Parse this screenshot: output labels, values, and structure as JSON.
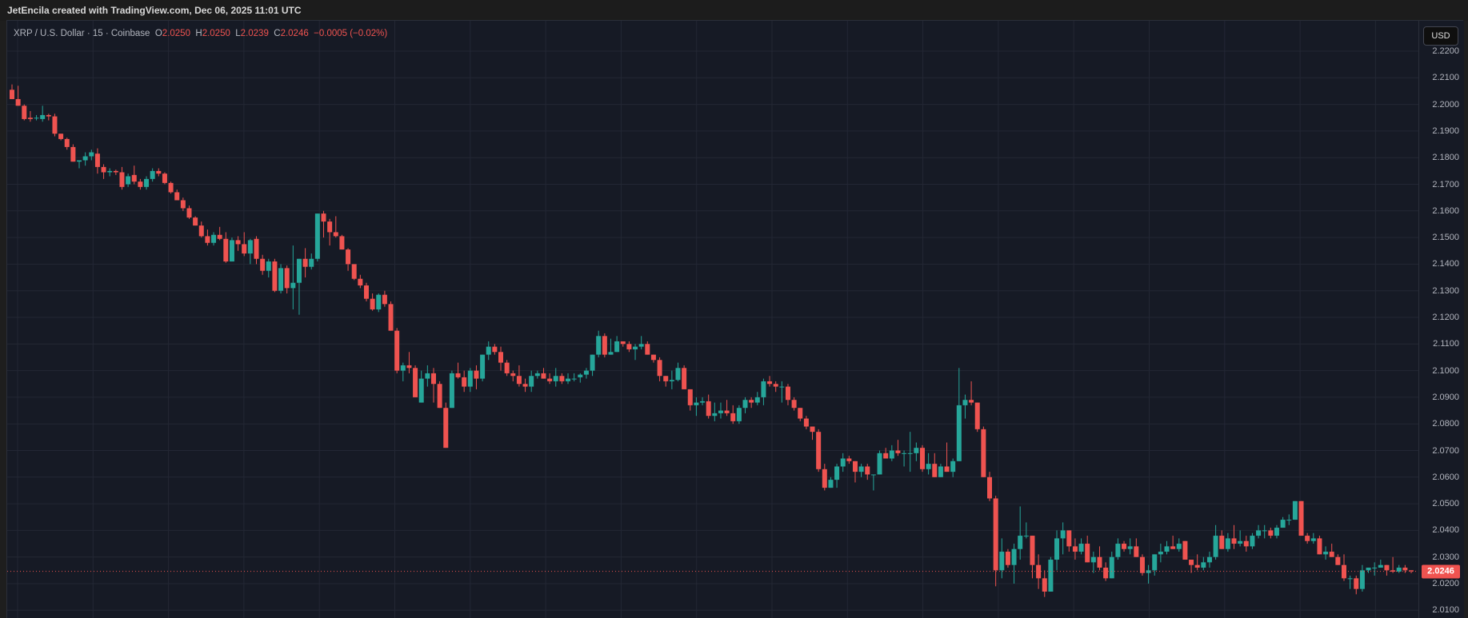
{
  "header": {
    "attribution": "JetEncila created with TradingView.com, Dec 06, 2025 11:01 UTC"
  },
  "legend": {
    "symbol": "XRP / U.S. Dollar · 15 · Coinbase",
    "open_label": "O",
    "open": "2.0250",
    "high_label": "H",
    "high": "2.0250",
    "low_label": "L",
    "low": "2.0239",
    "close_label": "C",
    "close": "2.0246",
    "change": "−0.0005 (−0.02%)"
  },
  "axis": {
    "currency_button": "USD",
    "last_price_tag": "2.0246"
  },
  "colors": {
    "up": "#26a69a",
    "down": "#ef5350",
    "background": "#161a25",
    "grid": "#232734"
  },
  "chart_data": {
    "type": "candlestick",
    "title": "XRP / U.S. Dollar · 15 · Coinbase",
    "xlabel": "",
    "ylabel": "USD",
    "ylim": [
      2.0075,
      2.2265
    ],
    "y_ticks": [
      "2.2200",
      "2.2100",
      "2.2000",
      "2.1900",
      "2.1800",
      "2.1700",
      "2.1600",
      "2.1500",
      "2.1400",
      "2.1300",
      "2.1200",
      "2.1100",
      "2.1000",
      "2.0900",
      "2.0800",
      "2.0700",
      "2.0600",
      "2.0500",
      "2.0400",
      "2.0300",
      "2.0200",
      "2.0100"
    ],
    "grid": true,
    "last_price": 2.0246,
    "ohlc_note": "approximate values read from pixels; [open, high, low, close]",
    "candles": [
      [
        2.2055,
        2.2075,
        2.202,
        2.202
      ],
      [
        2.202,
        2.207,
        2.1995,
        2.1995
      ],
      [
        2.1995,
        2.2,
        2.194,
        2.1945
      ],
      [
        2.195,
        2.1975,
        2.1935,
        2.1945
      ],
      [
        2.195,
        2.196,
        2.194,
        2.195
      ],
      [
        2.1945,
        2.1995,
        2.1935,
        2.196
      ],
      [
        2.196,
        2.1965,
        2.194,
        2.1955
      ],
      [
        2.1955,
        2.1965,
        2.188,
        2.189
      ],
      [
        2.189,
        2.1885,
        2.1865,
        2.187
      ],
      [
        2.187,
        2.1875,
        2.183,
        2.184
      ],
      [
        2.184,
        2.185,
        2.1785,
        2.1785
      ],
      [
        2.1785,
        2.179,
        2.176,
        2.179
      ],
      [
        2.179,
        2.182,
        2.177,
        2.1805
      ],
      [
        2.1805,
        2.183,
        2.179,
        2.182
      ],
      [
        2.1815,
        2.1835,
        2.174,
        2.1765
      ],
      [
        2.1765,
        2.1775,
        2.172,
        2.1745
      ],
      [
        2.1745,
        2.176,
        2.173,
        2.175
      ],
      [
        2.175,
        2.1755,
        2.1735,
        2.1745
      ],
      [
        2.1745,
        2.1765,
        2.168,
        2.169
      ],
      [
        2.17,
        2.174,
        2.169,
        2.173
      ],
      [
        2.1735,
        2.177,
        2.17,
        2.171
      ],
      [
        2.171,
        2.172,
        2.168,
        2.169
      ],
      [
        2.169,
        2.173,
        2.168,
        2.172
      ],
      [
        2.172,
        2.176,
        2.171,
        2.175
      ],
      [
        2.175,
        2.176,
        2.173,
        2.174
      ],
      [
        2.174,
        2.1745,
        2.17,
        2.1705
      ],
      [
        2.1705,
        2.171,
        2.1665,
        2.167
      ],
      [
        2.167,
        2.168,
        2.164,
        2.164
      ],
      [
        2.164,
        2.165,
        2.16,
        2.161
      ],
      [
        2.161,
        2.162,
        2.157,
        2.1575
      ],
      [
        2.1575,
        2.158,
        2.1545,
        2.1545
      ],
      [
        2.1545,
        2.156,
        2.15,
        2.1505
      ],
      [
        2.1505,
        2.153,
        2.147,
        2.148
      ],
      [
        2.148,
        2.152,
        2.147,
        2.151
      ],
      [
        2.151,
        2.154,
        2.149,
        2.1495
      ],
      [
        2.1495,
        2.152,
        2.1405,
        2.141
      ],
      [
        2.141,
        2.15,
        2.141,
        2.149
      ],
      [
        2.149,
        2.1505,
        2.145,
        2.1475
      ],
      [
        2.1475,
        2.152,
        2.143,
        2.144
      ],
      [
        2.144,
        2.1495,
        2.14,
        2.149
      ],
      [
        2.1495,
        2.1505,
        2.14,
        2.142
      ],
      [
        2.142,
        2.1435,
        2.136,
        2.1375
      ],
      [
        2.1375,
        2.142,
        2.135,
        2.141
      ],
      [
        2.141,
        2.142,
        2.1295,
        2.13
      ],
      [
        2.13,
        2.14,
        2.129,
        2.1385
      ],
      [
        2.1385,
        2.1395,
        2.129,
        2.131
      ],
      [
        2.131,
        2.147,
        2.123,
        2.133
      ],
      [
        2.133,
        2.141,
        2.121,
        2.142
      ],
      [
        2.142,
        2.146,
        2.135,
        2.139
      ],
      [
        2.139,
        2.144,
        2.138,
        2.142
      ],
      [
        2.142,
        2.158,
        2.141,
        2.159
      ],
      [
        2.159,
        2.16,
        2.15,
        2.156
      ],
      [
        2.156,
        2.157,
        2.147,
        2.152
      ],
      [
        2.152,
        2.158,
        2.15,
        2.1505
      ],
      [
        2.1505,
        2.151,
        2.146,
        2.1455
      ],
      [
        2.1455,
        2.146,
        2.1375,
        2.14
      ],
      [
        2.14,
        2.14,
        2.134,
        2.1345
      ],
      [
        2.1345,
        2.136,
        2.131,
        2.132
      ],
      [
        2.132,
        2.133,
        2.126,
        2.127
      ],
      [
        2.127,
        2.129,
        2.1225,
        2.123
      ],
      [
        2.123,
        2.129,
        2.122,
        2.1285
      ],
      [
        2.1285,
        2.13,
        2.124,
        2.125
      ],
      [
        2.125,
        2.126,
        2.115,
        2.115
      ],
      [
        2.115,
        2.116,
        2.099,
        2.1
      ],
      [
        2.1,
        2.103,
        2.096,
        2.102
      ],
      [
        2.102,
        2.107,
        2.099,
        2.101
      ],
      [
        2.101,
        2.102,
        2.09,
        2.09
      ],
      [
        2.088,
        2.1,
        2.088,
        2.097
      ],
      [
        2.097,
        2.102,
        2.094,
        2.099
      ],
      [
        2.099,
        2.101,
        2.088,
        2.095
      ],
      [
        2.095,
        2.096,
        2.086,
        2.086
      ],
      [
        2.086,
        2.088,
        2.071,
        2.071
      ],
      [
        2.086,
        2.1,
        2.088,
        2.099
      ],
      [
        2.099,
        2.103,
        2.097,
        2.0975
      ],
      [
        2.0975,
        2.1,
        2.092,
        2.094
      ],
      [
        2.094,
        2.101,
        2.092,
        2.1
      ],
      [
        2.1,
        2.102,
        2.093,
        2.097
      ],
      [
        2.097,
        2.105,
        2.096,
        2.106
      ],
      [
        2.106,
        2.111,
        2.104,
        2.109
      ],
      [
        2.109,
        2.11,
        2.106,
        2.107
      ],
      [
        2.107,
        2.109,
        2.1,
        2.103
      ],
      [
        2.103,
        2.104,
        2.098,
        2.099
      ],
      [
        2.099,
        2.1,
        2.096,
        2.098
      ],
      [
        2.098,
        2.102,
        2.094,
        2.095
      ],
      [
        2.095,
        2.097,
        2.092,
        2.094
      ],
      [
        2.094,
        2.1,
        2.092,
        2.098
      ],
      [
        2.098,
        2.1,
        2.097,
        2.099
      ],
      [
        2.099,
        2.101,
        2.098,
        2.097
      ],
      [
        2.097,
        2.099,
        2.095,
        2.096
      ],
      [
        2.096,
        2.101,
        2.094,
        2.098
      ],
      [
        2.098,
        2.099,
        2.095,
        2.096
      ],
      [
        2.096,
        2.099,
        2.095,
        2.097
      ],
      [
        2.097,
        2.099,
        2.096,
        2.097
      ],
      [
        2.0975,
        2.099,
        2.0955,
        2.0985
      ],
      [
        2.0985,
        2.101,
        2.097,
        2.1
      ],
      [
        2.1,
        2.1045,
        2.098,
        2.106
      ],
      [
        2.106,
        2.115,
        2.105,
        2.113
      ],
      [
        2.113,
        2.114,
        2.105,
        2.106
      ],
      [
        2.106,
        2.112,
        2.106,
        2.107
      ],
      [
        2.107,
        2.113,
        2.107,
        2.111
      ],
      [
        2.111,
        2.111,
        2.109,
        2.11
      ],
      [
        2.11,
        2.111,
        2.107,
        2.108
      ],
      [
        2.108,
        2.11,
        2.104,
        2.109
      ],
      [
        2.109,
        2.113,
        2.108,
        2.11
      ],
      [
        2.11,
        2.111,
        2.106,
        2.106
      ],
      [
        2.106,
        2.105,
        2.103,
        2.104
      ],
      [
        2.104,
        2.105,
        2.096,
        2.098
      ],
      [
        2.098,
        2.098,
        2.094,
        2.096
      ],
      [
        2.096,
        2.1,
        2.093,
        2.0965
      ],
      [
        2.0965,
        2.103,
        2.096,
        2.101
      ],
      [
        2.101,
        2.102,
        2.093,
        2.093
      ],
      [
        2.093,
        2.093,
        2.085,
        2.087
      ],
      [
        2.087,
        2.09,
        2.083,
        2.088
      ],
      [
        2.088,
        2.09,
        2.087,
        2.0885
      ],
      [
        2.0885,
        2.091,
        2.082,
        2.083
      ],
      [
        2.083,
        2.088,
        2.081,
        2.084
      ],
      [
        2.084,
        2.088,
        2.082,
        2.085
      ],
      [
        2.085,
        2.089,
        2.083,
        2.084
      ],
      [
        2.084,
        2.087,
        2.08,
        2.081
      ],
      [
        2.081,
        2.087,
        2.08,
        2.086
      ],
      [
        2.086,
        2.09,
        2.084,
        2.089
      ],
      [
        2.089,
        2.09,
        2.086,
        2.088
      ],
      [
        2.088,
        2.092,
        2.087,
        2.09
      ],
      [
        2.09,
        2.097,
        2.087,
        2.096
      ],
      [
        2.096,
        2.098,
        2.094,
        2.095
      ],
      [
        2.095,
        2.096,
        2.092,
        2.094
      ],
      [
        2.094,
        2.096,
        2.088,
        2.094
      ],
      [
        2.094,
        2.095,
        2.087,
        2.089
      ],
      [
        2.089,
        2.09,
        2.085,
        2.086
      ],
      [
        2.086,
        2.086,
        2.081,
        2.082
      ],
      [
        2.082,
        2.083,
        2.078,
        2.079
      ],
      [
        2.079,
        2.078,
        2.074,
        2.077
      ],
      [
        2.077,
        2.078,
        2.062,
        2.063
      ],
      [
        2.063,
        2.065,
        2.055,
        2.056
      ],
      [
        2.056,
        2.06,
        2.056,
        2.059
      ],
      [
        2.059,
        2.065,
        2.056,
        2.064
      ],
      [
        2.064,
        2.069,
        2.062,
        2.067
      ],
      [
        2.067,
        2.068,
        2.065,
        2.066
      ],
      [
        2.066,
        2.066,
        2.058,
        2.062
      ],
      [
        2.062,
        2.065,
        2.06,
        2.064
      ],
      [
        2.064,
        2.065,
        2.059,
        2.061
      ],
      [
        2.061,
        2.061,
        2.055,
        2.061
      ],
      [
        2.061,
        2.07,
        2.061,
        2.069
      ],
      [
        2.069,
        2.071,
        2.067,
        2.067
      ],
      [
        2.067,
        2.072,
        2.066,
        2.07
      ],
      [
        2.07,
        2.074,
        2.068,
        2.069
      ],
      [
        2.069,
        2.07,
        2.064,
        2.069
      ],
      [
        2.069,
        2.077,
        2.062,
        2.069
      ],
      [
        2.069,
        2.073,
        2.066,
        2.071
      ],
      [
        2.071,
        2.072,
        2.062,
        2.063
      ],
      [
        2.063,
        2.069,
        2.061,
        2.065
      ],
      [
        2.065,
        2.069,
        2.06,
        2.06
      ],
      [
        2.06,
        2.065,
        2.06,
        2.064
      ],
      [
        2.064,
        2.073,
        2.062,
        2.062
      ],
      [
        2.062,
        2.067,
        2.06,
        2.066
      ],
      [
        2.066,
        2.101,
        2.066,
        2.087
      ],
      [
        2.087,
        2.091,
        2.082,
        2.089
      ],
      [
        2.089,
        2.096,
        2.087,
        2.088
      ],
      [
        2.088,
        2.088,
        2.077,
        2.078
      ],
      [
        2.078,
        2.079,
        2.062,
        2.06
      ],
      [
        2.06,
        2.062,
        2.051,
        2.052
      ],
      [
        2.052,
        2.053,
        2.019,
        2.025
      ],
      [
        2.025,
        2.037,
        2.022,
        2.032
      ],
      [
        2.032,
        2.033,
        2.026,
        2.027
      ],
      [
        2.027,
        2.035,
        2.02,
        2.033
      ],
      [
        2.033,
        2.049,
        2.029,
        2.038
      ],
      [
        2.038,
        2.043,
        2.037,
        2.038
      ],
      [
        2.038,
        2.038,
        2.022,
        2.027
      ],
      [
        2.027,
        2.031,
        2.018,
        2.022
      ],
      [
        2.022,
        2.025,
        2.015,
        2.017
      ],
      [
        2.017,
        2.03,
        2.019,
        2.029
      ],
      [
        2.029,
        2.04,
        2.025,
        2.037
      ],
      [
        2.037,
        2.043,
        2.031,
        2.04
      ],
      [
        2.04,
        2.04,
        2.032,
        2.034
      ],
      [
        2.034,
        2.037,
        2.029,
        2.032
      ],
      [
        2.032,
        2.037,
        2.031,
        2.035
      ],
      [
        2.035,
        2.038,
        2.028,
        2.028
      ],
      [
        2.028,
        2.032,
        2.024,
        2.03
      ],
      [
        2.03,
        2.034,
        2.025,
        2.026
      ],
      [
        2.026,
        2.028,
        2.021,
        2.022
      ],
      [
        2.022,
        2.032,
        2.022,
        2.03
      ],
      [
        2.03,
        2.037,
        2.029,
        2.035
      ],
      [
        2.035,
        2.036,
        2.032,
        2.033
      ],
      [
        2.033,
        2.037,
        2.031,
        2.034
      ],
      [
        2.034,
        2.037,
        2.03,
        2.03
      ],
      [
        2.03,
        2.031,
        2.023,
        2.024
      ],
      [
        2.024,
        2.027,
        2.02,
        2.025
      ],
      [
        2.025,
        2.031,
        2.023,
        2.031
      ],
      [
        2.031,
        2.035,
        2.028,
        2.032
      ],
      [
        2.032,
        2.036,
        2.031,
        2.034
      ],
      [
        2.034,
        2.038,
        2.033,
        2.033
      ],
      [
        2.033,
        2.037,
        2.032,
        2.035
      ],
      [
        2.036,
        2.036,
        2.029,
        2.029
      ],
      [
        2.029,
        2.029,
        2.024,
        2.027
      ],
      [
        2.027,
        2.031,
        2.025,
        2.026
      ],
      [
        2.026,
        2.03,
        2.025,
        2.028
      ],
      [
        2.028,
        2.032,
        2.026,
        2.03
      ],
      [
        2.03,
        2.042,
        2.029,
        2.038
      ],
      [
        2.038,
        2.04,
        2.034,
        2.033
      ],
      [
        2.033,
        2.039,
        2.032,
        2.037
      ],
      [
        2.037,
        2.042,
        2.033,
        2.035
      ],
      [
        2.035,
        2.04,
        2.034,
        2.036
      ],
      [
        2.036,
        2.038,
        2.032,
        2.034
      ],
      [
        2.034,
        2.039,
        2.033,
        2.038
      ],
      [
        2.038,
        2.042,
        2.037,
        2.04
      ],
      [
        2.04,
        2.042,
        2.037,
        2.04
      ],
      [
        2.04,
        2.041,
        2.037,
        2.038
      ],
      [
        2.038,
        2.042,
        2.037,
        2.041
      ],
      [
        2.041,
        2.045,
        2.041,
        2.044
      ],
      [
        2.044,
        2.046,
        2.042,
        2.044
      ],
      [
        2.044,
        2.051,
        2.044,
        2.051
      ],
      [
        2.051,
        2.051,
        2.038,
        2.038
      ],
      [
        2.038,
        2.039,
        2.035,
        2.036
      ],
      [
        2.036,
        2.039,
        2.035,
        2.037
      ],
      [
        2.037,
        2.038,
        2.031,
        2.031
      ],
      [
        2.031,
        2.034,
        2.029,
        2.032
      ],
      [
        2.032,
        2.035,
        2.03,
        2.03
      ],
      [
        2.03,
        2.031,
        2.027,
        2.027
      ],
      [
        2.027,
        2.031,
        2.021,
        2.022
      ],
      [
        2.022,
        2.023,
        2.018,
        2.022
      ],
      [
        2.022,
        2.023,
        2.016,
        2.018
      ],
      [
        2.018,
        2.027,
        2.017,
        2.025
      ],
      [
        2.025,
        2.026,
        2.024,
        2.026
      ],
      [
        2.026,
        2.028,
        2.023,
        2.026
      ],
      [
        2.026,
        2.029,
        2.026,
        2.027
      ],
      [
        2.027,
        2.027,
        2.023,
        2.025
      ],
      [
        2.025,
        2.03,
        2.024,
        2.0245
      ],
      [
        2.0245,
        2.027,
        2.024,
        2.026
      ],
      [
        2.026,
        2.027,
        2.024,
        2.025
      ],
      [
        2.025,
        2.025,
        2.0239,
        2.0246
      ]
    ]
  }
}
